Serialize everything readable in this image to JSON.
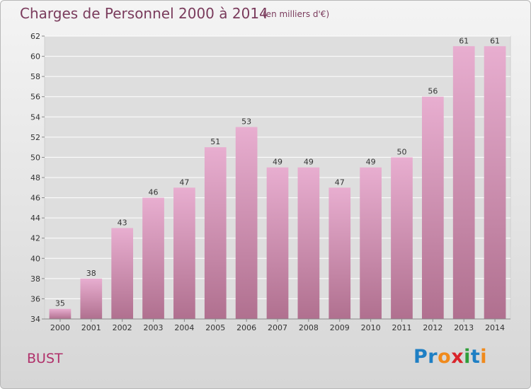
{
  "title": "Charges de Personnel 2000 à 2014",
  "subtitle": "(en milliers d'€)",
  "commune": "BUST",
  "logo": {
    "letters": [
      {
        "char": "P",
        "color": "#1e7fc4"
      },
      {
        "char": "r",
        "color": "#1e7fc4"
      },
      {
        "char": "o",
        "color": "#f08a1c"
      },
      {
        "char": "x",
        "color": "#d9242b"
      },
      {
        "char": "i",
        "color": "#2f9e3a"
      },
      {
        "char": "t",
        "color": "#1e7fc4"
      },
      {
        "char": "i",
        "color": "#f08a1c"
      }
    ]
  },
  "chart_data": {
    "type": "bar",
    "categories": [
      "2000",
      "2001",
      "2002",
      "2003",
      "2004",
      "2005",
      "2006",
      "2007",
      "2008",
      "2009",
      "2010",
      "2011",
      "2012",
      "2013",
      "2014"
    ],
    "values": [
      35,
      38,
      43,
      46,
      47,
      51,
      53,
      49,
      49,
      47,
      49,
      50,
      56,
      61,
      61
    ],
    "ylim": [
      34,
      62
    ],
    "yticks": [
      34,
      36,
      38,
      40,
      42,
      44,
      46,
      48,
      50,
      52,
      54,
      56,
      58,
      60,
      62
    ],
    "grid": true,
    "bar_color_top": "#e8aed0",
    "bar_color_bottom": "#b0708f"
  }
}
